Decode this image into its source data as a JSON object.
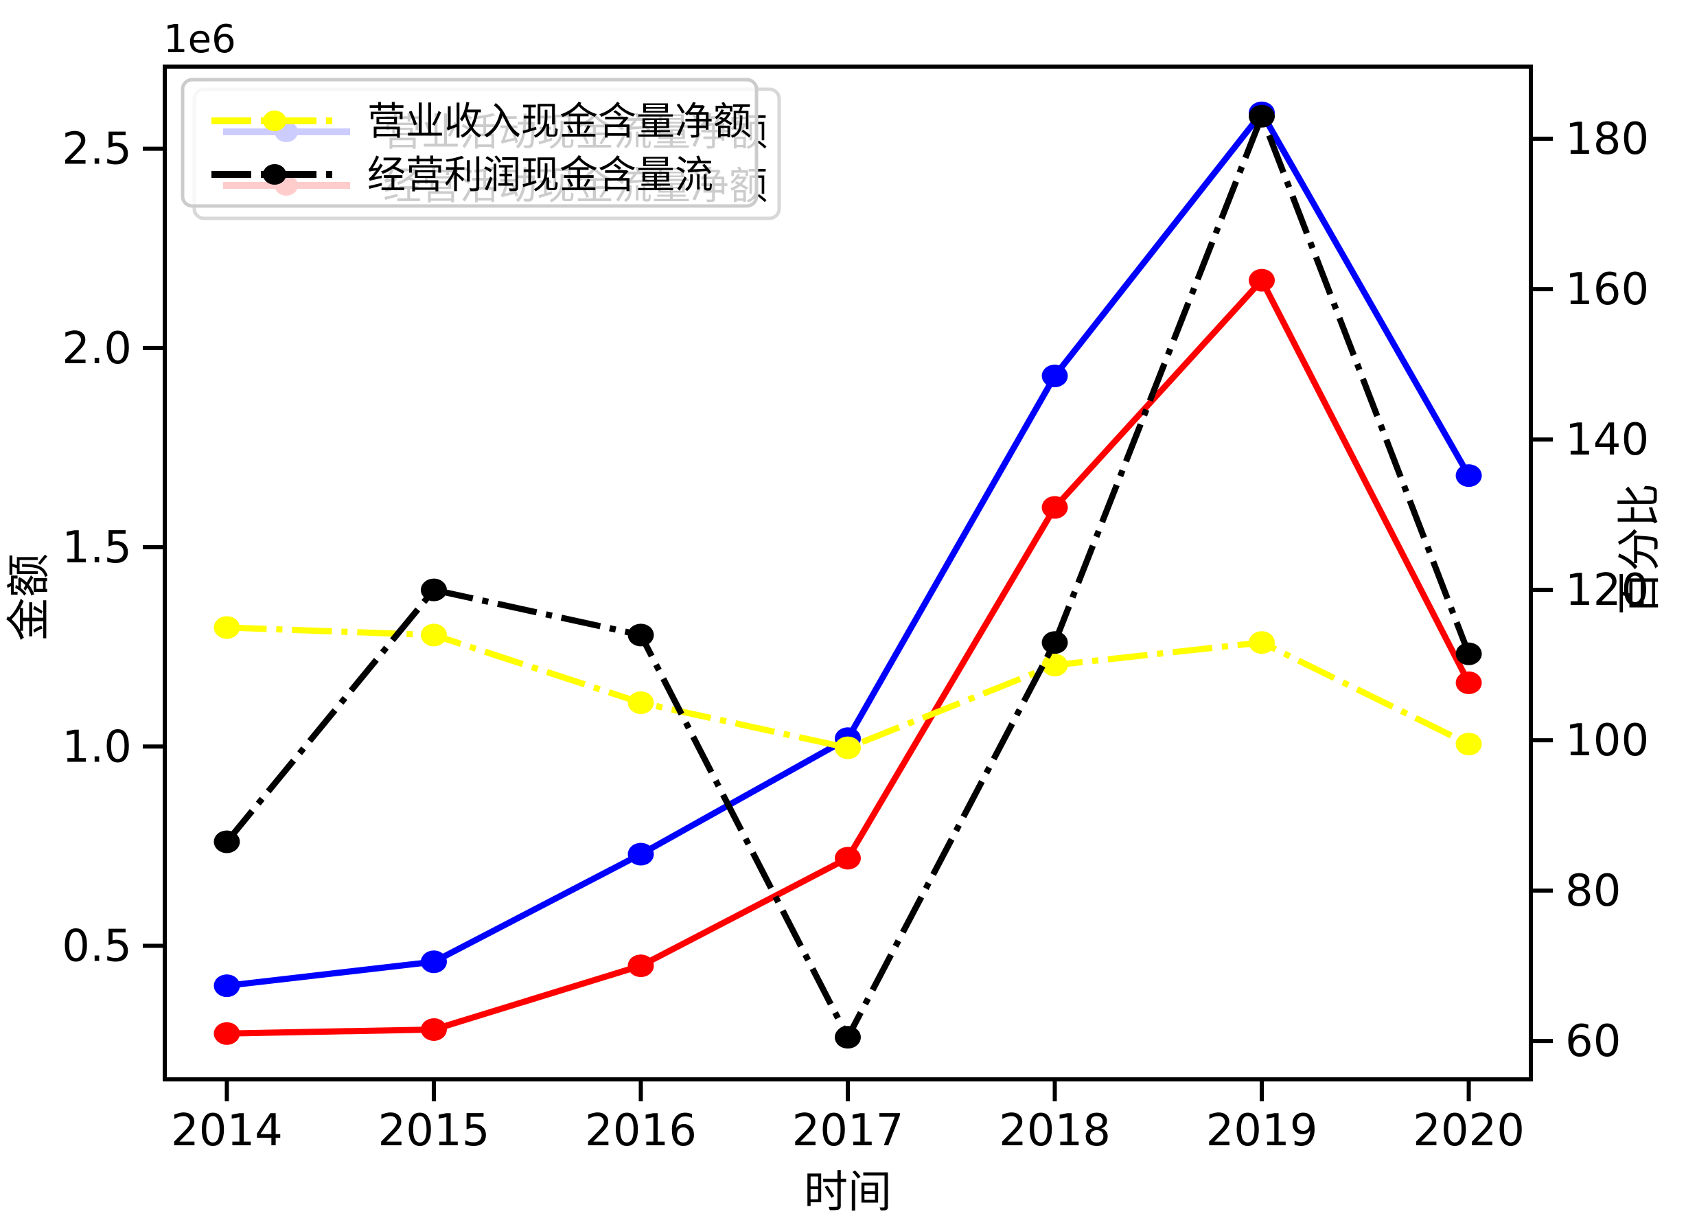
{
  "figure": {
    "background": "#ffffff",
    "plot_border_color": "#000000"
  },
  "axes": {
    "x": {
      "label": "时间",
      "tick_labels": [
        "2014",
        "2015",
        "2016",
        "2017",
        "2018",
        "2019",
        "2020"
      ],
      "tick_values": [
        2014,
        2015,
        2016,
        2017,
        2018,
        2019,
        2020
      ],
      "range": [
        2013.7,
        2020.3
      ]
    },
    "y_left": {
      "label": "金额",
      "offset_label": "1e6",
      "tick_labels": [
        "0.5",
        "1.0",
        "1.5",
        "2.0",
        "2.5"
      ],
      "tick_values": [
        500000,
        1000000,
        1500000,
        2000000,
        2500000
      ],
      "range": [
        165000,
        2706000
      ]
    },
    "y_right": {
      "label": "百分比",
      "tick_labels": [
        "60",
        "80",
        "100",
        "120",
        "140",
        "160",
        "180"
      ],
      "tick_values": [
        60,
        80,
        100,
        120,
        140,
        160,
        180
      ],
      "range": [
        54.9,
        189.6
      ]
    }
  },
  "legend_front": {
    "border_color": "#cccccc",
    "entries": [
      {
        "label": "营业收入现金含量净额",
        "color": "#ffff00",
        "style": "dashdot"
      },
      {
        "label": "经营利润现金含量流",
        "color": "#000000",
        "style": "dashdot"
      }
    ]
  },
  "legend_back": {
    "border_color": "#d8d8d8",
    "entries": [
      {
        "label": "营业活动现金流量净额",
        "color": "#0000ff",
        "style": "solid"
      },
      {
        "label": "经营活动现金流量净额",
        "color": "#ff0000",
        "style": "solid"
      }
    ]
  },
  "chart_data": {
    "type": "line",
    "title": "",
    "xlabel": "时间",
    "ylabel_left": "金额",
    "ylabel_right": "百分比",
    "x": [
      2014,
      2015,
      2016,
      2017,
      2018,
      2019,
      2020
    ],
    "grid": false,
    "legend_position": "upper-left",
    "ylim_left": [
      165000,
      2706000
    ],
    "ylim_right": [
      54.9,
      189.6
    ],
    "series": [
      {
        "name": "营业活动现金流量净额",
        "axis": "left",
        "color": "#0000ff",
        "style": "solid",
        "marker": "circle",
        "values": [
          400000,
          460000,
          730000,
          1020000,
          1930000,
          2590000,
          1680000
        ]
      },
      {
        "name": "经营活动现金流量净额",
        "axis": "left",
        "color": "#ff0000",
        "style": "solid",
        "marker": "circle",
        "values": [
          280000,
          290000,
          450000,
          720000,
          1600000,
          2170000,
          1160000
        ]
      },
      {
        "name": "营业收入现金含量净额",
        "axis": "right",
        "color": "#ffff00",
        "style": "dashdot",
        "marker": "circle",
        "values": [
          115,
          114,
          105,
          99,
          110,
          113,
          99.5
        ]
      },
      {
        "name": "经营利润现金含量流",
        "axis": "right",
        "color": "#000000",
        "style": "dashdot",
        "marker": "circle",
        "values": [
          86.5,
          120,
          114,
          60.5,
          113,
          183,
          111.5
        ]
      }
    ]
  }
}
